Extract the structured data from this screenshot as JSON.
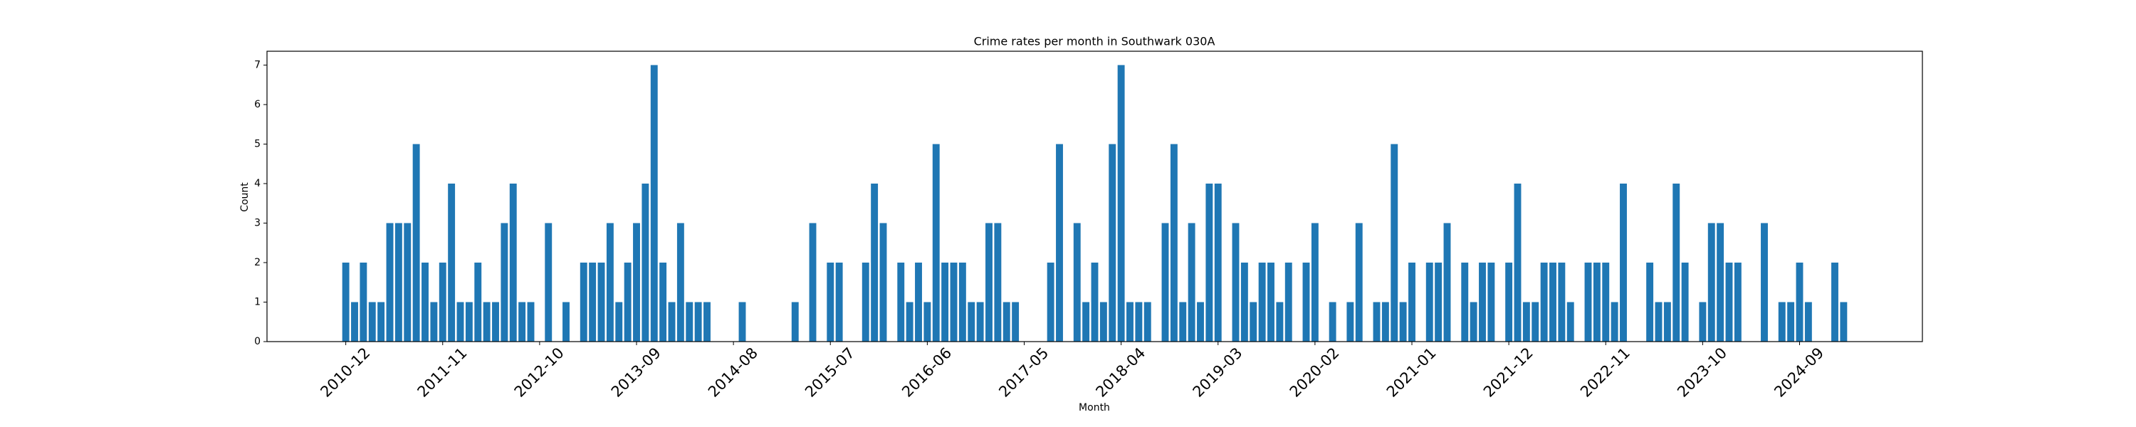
{
  "chart_data": {
    "type": "bar",
    "title": "Crime rates per month in Southwark 030A",
    "x_label": "Month",
    "y_label": "Count",
    "color": "#1f77b4",
    "categories": [
      "2010-12",
      null,
      null,
      null,
      null,
      null,
      null,
      null,
      null,
      null,
      null,
      "2011-11",
      null,
      null,
      null,
      null,
      null,
      null,
      null,
      null,
      null,
      null,
      "2012-10",
      null,
      null,
      null,
      null,
      null,
      null,
      null,
      null,
      null,
      null,
      "2013-09",
      null,
      null,
      null,
      null,
      null,
      null,
      null,
      null,
      null,
      null,
      "2014-08",
      null,
      null,
      null,
      null,
      null,
      null,
      null,
      null,
      null,
      null,
      "2015-07",
      null,
      null,
      null,
      null,
      null,
      null,
      null,
      null,
      null,
      null,
      "2016-06",
      null,
      null,
      null,
      null,
      null,
      null,
      null,
      null,
      null,
      null,
      "2017-05",
      null,
      null,
      null,
      null,
      null,
      null,
      null,
      null,
      null,
      null,
      "2018-04",
      null,
      null,
      null,
      null,
      null,
      null,
      null,
      null,
      null,
      null,
      "2019-03",
      null,
      null,
      null,
      null,
      null,
      null,
      null,
      null,
      null,
      null,
      "2020-02",
      null,
      null,
      null,
      null,
      null,
      null,
      null,
      null,
      null,
      null,
      "2021-01",
      null,
      null,
      null,
      null,
      null,
      null,
      null,
      null,
      null,
      null,
      "2021-12",
      null,
      null,
      null,
      null,
      null,
      null,
      null,
      null,
      null,
      null,
      "2022-11",
      null,
      null,
      null,
      null,
      null,
      null,
      null,
      null,
      null,
      null,
      "2023-10",
      null,
      null,
      null,
      null,
      null,
      null,
      null,
      null,
      null,
      null,
      "2024-09",
      null,
      null,
      null,
      null,
      null
    ],
    "values": [
      2,
      1,
      2,
      1,
      1,
      3,
      3,
      3,
      5,
      2,
      1,
      2,
      4,
      1,
      1,
      2,
      1,
      1,
      3,
      4,
      1,
      1,
      0,
      3,
      0,
      1,
      0,
      2,
      2,
      2,
      3,
      1,
      2,
      3,
      4,
      7,
      2,
      1,
      3,
      1,
      1,
      1,
      0,
      0,
      0,
      1,
      0,
      0,
      0,
      0,
      0,
      1,
      0,
      3,
      0,
      2,
      2,
      0,
      0,
      2,
      4,
      3,
      0,
      2,
      1,
      2,
      1,
      5,
      2,
      2,
      2,
      1,
      1,
      3,
      3,
      1,
      1,
      0,
      0,
      0,
      2,
      5,
      0,
      3,
      1,
      2,
      1,
      5,
      7,
      1,
      1,
      1,
      0,
      3,
      5,
      1,
      3,
      1,
      4,
      4,
      0,
      3,
      2,
      1,
      2,
      2,
      1,
      2,
      0,
      2,
      3,
      0,
      1,
      0,
      1,
      3,
      0,
      1,
      1,
      5,
      1,
      2,
      0,
      2,
      2,
      3,
      0,
      2,
      1,
      2,
      2,
      0,
      2,
      4,
      1,
      1,
      2,
      2,
      2,
      1,
      0,
      2,
      2,
      2,
      1,
      4,
      0,
      0,
      2,
      1,
      1,
      4,
      2,
      0,
      1,
      3,
      3,
      2,
      2,
      0,
      0,
      3,
      0,
      1,
      1,
      2,
      1,
      0,
      0,
      2,
      1
    ],
    "ylim": [
      0,
      7.35
    ],
    "yticks": [
      0,
      1,
      2,
      3,
      4,
      5,
      6,
      7
    ]
  }
}
